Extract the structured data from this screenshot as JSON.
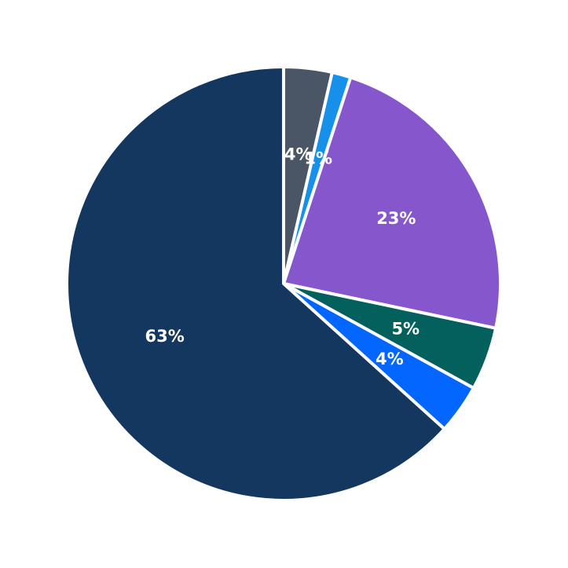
{
  "chart_data": {
    "type": "pie",
    "title": "",
    "start_angle_deg": 90,
    "direction": "clockwise",
    "slices": [
      {
        "label": "4%",
        "value": 3.6,
        "color": "#4a5566"
      },
      {
        "label": "1%",
        "value": 1.4,
        "color": "#1690e8"
      },
      {
        "label": "23%",
        "value": 23.3,
        "color": "#8656cd"
      },
      {
        "label": "5%",
        "value": 4.7,
        "color": "#03605c"
      },
      {
        "label": "4%",
        "value": 3.7,
        "color": "#0366fe"
      },
      {
        "label": "63%",
        "value": 63.3,
        "color": "#14375f"
      }
    ],
    "legend": null,
    "edge_color": "#ffffff"
  }
}
